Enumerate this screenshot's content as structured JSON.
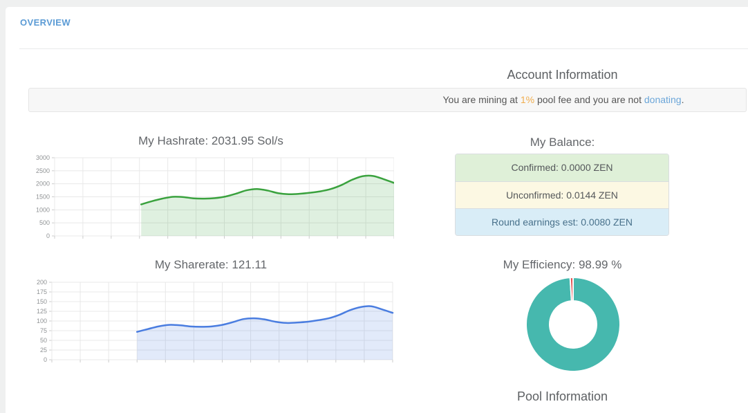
{
  "page": {
    "title": "OVERVIEW"
  },
  "account": {
    "heading": "Account Information",
    "notice": {
      "pre": "You are mining at ",
      "fee": "1%",
      "mid": " pool fee and you are not ",
      "link": "donating",
      "post": "."
    },
    "balance": {
      "heading": "My Balance:",
      "rows": [
        {
          "text": "Confirmed: 0.0000 ZEN",
          "status": "success",
          "bg": "#dff0d8"
        },
        {
          "text": "Unconfirmed: 0.0144 ZEN",
          "status": "warning",
          "bg": "#fcf8e3"
        },
        {
          "text": "Round earnings est: 0.0080 ZEN",
          "status": "info",
          "bg": "#d9edf7"
        }
      ]
    }
  },
  "pool": {
    "heading": "Pool Information"
  },
  "chart_data": [
    {
      "type": "area",
      "title": "My Hashrate: 2031.95 Sol/s",
      "xlabel": "",
      "ylabel": "",
      "ylim": [
        0,
        3000
      ],
      "yticks": [
        0,
        500,
        1000,
        1500,
        2000,
        2500,
        3000
      ],
      "grid": true,
      "x_gridline_intervals": 12,
      "x_start_frac": 0.255,
      "values": [
        1210,
        1330,
        1430,
        1500,
        1490,
        1440,
        1430,
        1450,
        1510,
        1620,
        1750,
        1800,
        1740,
        1640,
        1600,
        1615,
        1655,
        1710,
        1800,
        1950,
        2150,
        2290,
        2300,
        2180,
        2035
      ],
      "line_color": "#3aa23e",
      "fill_color": "rgba(58,162,62,0.16)"
    },
    {
      "type": "area",
      "title": "My Sharerate: 121.11",
      "xlabel": "",
      "ylabel": "",
      "ylim": [
        0,
        200
      ],
      "yticks": [
        0,
        25,
        50,
        75,
        100,
        125,
        150,
        175,
        200
      ],
      "grid": true,
      "x_gridline_intervals": 12,
      "x_start_frac": 0.25,
      "values": [
        72,
        79,
        86,
        90,
        89,
        86,
        85,
        86,
        90,
        97,
        105,
        107,
        104,
        98,
        95,
        96,
        98,
        102,
        107,
        116,
        128,
        136,
        138,
        130,
        121
      ],
      "line_color": "#4a7de0",
      "fill_color": "rgba(74,125,224,0.16)"
    },
    {
      "type": "donut",
      "title": "My Efficiency: 98.99 %",
      "segments": [
        {
          "name": "efficient",
          "value": 98.99,
          "color": "#46b8ae"
        },
        {
          "name": "inefficient",
          "value": 1.01,
          "color": "#e05252"
        }
      ]
    }
  ]
}
